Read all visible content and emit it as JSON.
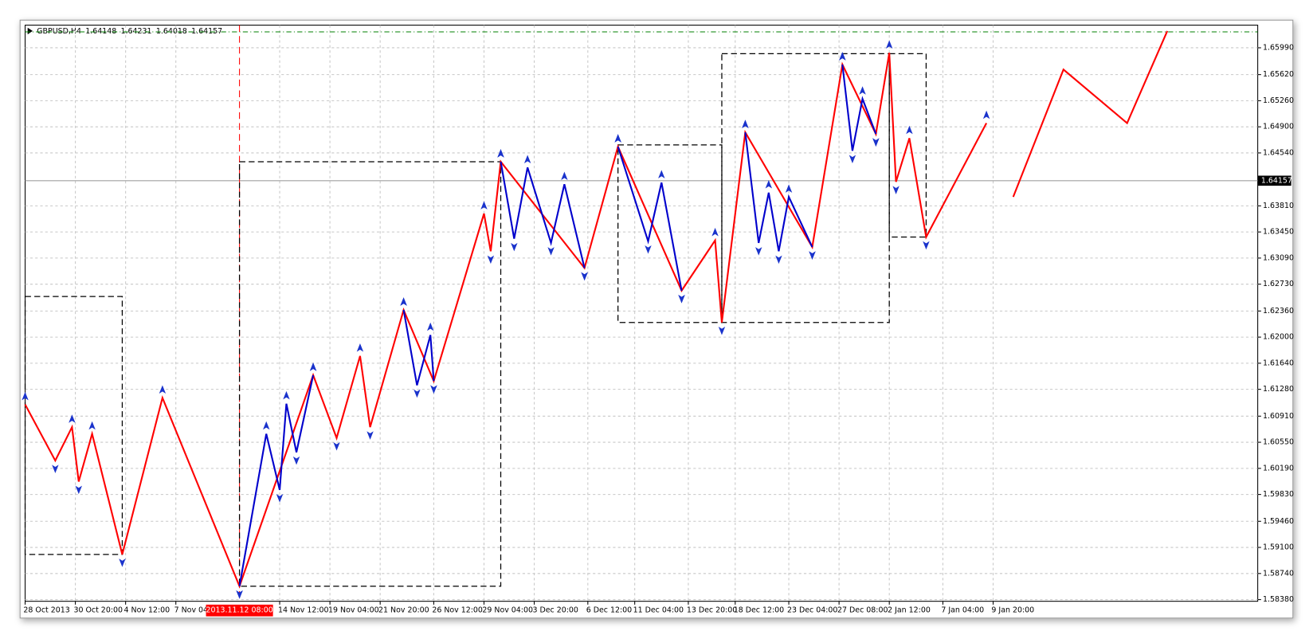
{
  "chart_data": {
    "type": "zigzag",
    "symbol": "GBPUSD,H4",
    "ohlc": [
      1.64148,
      1.64231,
      1.64018,
      1.64157
    ],
    "current_price": 1.64157,
    "top_line": 1.66209,
    "marker_time": {
      "value": 64,
      "label": "2013.11.12 08:00"
    },
    "xlim": [
      0,
      368
    ],
    "ylim": [
      1.58357,
      1.66302
    ],
    "grid": true,
    "xticks": [
      {
        "value": 0,
        "label": "28 Oct 2013"
      },
      {
        "value": 15,
        "label": "30 Oct 20:00"
      },
      {
        "value": 30,
        "label": "4 Nov 12:00"
      },
      {
        "value": 45,
        "label": "7 Nov 04:00"
      },
      {
        "value": 76,
        "label": "14 Nov 12:00"
      },
      {
        "value": 91,
        "label": "19 Nov 04:00"
      },
      {
        "value": 106,
        "label": "21 Nov 20:00"
      },
      {
        "value": 122,
        "label": "26 Nov 12:00"
      },
      {
        "value": 137,
        "label": "29 Nov 04:00"
      },
      {
        "value": 152,
        "label": "3 Dec 20:00"
      },
      {
        "value": 168,
        "label": "6 Dec 12:00"
      },
      {
        "value": 182,
        "label": "11 Dec 04:00"
      },
      {
        "value": 198,
        "label": "13 Dec 20:00"
      },
      {
        "value": 212,
        "label": "18 Dec 12:00"
      },
      {
        "value": 228,
        "label": "23 Dec 04:00"
      },
      {
        "value": 243,
        "label": "27 Dec 08:00"
      },
      {
        "value": 258,
        "label": "2 Jan 12:00"
      },
      {
        "value": 274,
        "label": "7 Jan 04:00"
      },
      {
        "value": 289,
        "label": "9 Jan 20:00"
      }
    ],
    "yticks": [
      {
        "value": 1.5838,
        "label": "1.58380"
      },
      {
        "value": 1.5874,
        "label": "1.58740"
      },
      {
        "value": 1.591,
        "label": "1.59100"
      },
      {
        "value": 1.5946,
        "label": "1.59460"
      },
      {
        "value": 1.5983,
        "label": "1.59830"
      },
      {
        "value": 1.6019,
        "label": "1.60190"
      },
      {
        "value": 1.6055,
        "label": "1.60550"
      },
      {
        "value": 1.6091,
        "label": "1.60910"
      },
      {
        "value": 1.6128,
        "label": "1.61280"
      },
      {
        "value": 1.6164,
        "label": "1.61640"
      },
      {
        "value": 1.62,
        "label": "1.62000"
      },
      {
        "value": 1.6236,
        "label": "1.62360"
      },
      {
        "value": 1.6273,
        "label": "1.62730"
      },
      {
        "value": 1.6309,
        "label": "1.63090"
      },
      {
        "value": 1.6345,
        "label": "1.63450"
      },
      {
        "value": 1.6381,
        "label": "1.63810"
      },
      {
        "value": 1.6454,
        "label": "1.64540"
      },
      {
        "value": 1.649,
        "label": "1.64900"
      },
      {
        "value": 1.6526,
        "label": "1.65260"
      },
      {
        "value": 1.6562,
        "label": "1.65620"
      },
      {
        "value": 1.6599,
        "label": "1.65990"
      }
    ],
    "series": [
      {
        "color": "#ff0000",
        "x": [
          0,
          9,
          14,
          16,
          20,
          29,
          41,
          64,
          86,
          93,
          100,
          103,
          113,
          122,
          137,
          139,
          142,
          167,
          177,
          196,
          206,
          208,
          215,
          235,
          244,
          254,
          258,
          260,
          264,
          269,
          287
        ],
        "values": [
          1.61071,
          1.60297,
          1.60759,
          1.60008,
          1.60666,
          1.59003,
          1.61163,
          1.58565,
          1.61475,
          1.60609,
          1.6174,
          1.60759,
          1.62375,
          1.61394,
          1.63703,
          1.63184,
          1.64419,
          1.62953,
          1.64627,
          1.62641,
          1.63334,
          1.62202,
          1.64824,
          1.63242,
          1.65759,
          1.64801,
          1.65921,
          1.64142,
          1.64743,
          1.6338,
          1.64951
        ]
      },
      {
        "color": "#0000cc",
        "x": [
          64,
          72,
          76,
          78,
          81,
          86,
          87,
          113,
          117,
          121,
          122,
          123,
          142,
          146,
          150,
          157,
          161,
          167,
          168,
          177,
          186,
          190,
          196,
          197,
          215,
          219,
          222,
          225,
          228,
          235,
          236,
          244,
          247,
          250,
          254
        ],
        "values": [
          1.58565,
          1.60666,
          1.59893,
          1.61082,
          1.60412,
          1.61475,
          null,
          1.62375,
          1.61336,
          1.62029,
          1.61394,
          null,
          1.64419,
          1.63357,
          1.64339,
          1.63299,
          1.64108,
          1.62953,
          null,
          1.64627,
          1.63322,
          1.64131,
          1.62641,
          null,
          1.64824,
          1.63299,
          1.63992,
          1.63184,
          1.63934,
          1.63242,
          null,
          1.65759,
          1.6457,
          1.65286,
          1.64801
        ]
      },
      {
        "color": "#ff0000",
        "x": [
          295,
          310,
          329,
          341
        ],
        "values": [
          1.63934,
          1.6569,
          1.64951,
          1.66221
        ]
      }
    ],
    "boxes": [
      {
        "x": [
          0,
          29
        ],
        "y": [
          1.59003,
          1.6256
        ]
      },
      {
        "x": [
          64,
          142
        ],
        "y": [
          1.58565,
          1.64419
        ]
      },
      {
        "x": [
          177,
          208
        ],
        "y": [
          1.62202,
          1.6465
        ]
      },
      {
        "x": [
          208,
          258
        ],
        "y": [
          1.62202,
          1.65909
        ]
      },
      {
        "x": [
          258,
          269
        ],
        "y": [
          1.6338,
          1.65909
        ]
      }
    ]
  }
}
